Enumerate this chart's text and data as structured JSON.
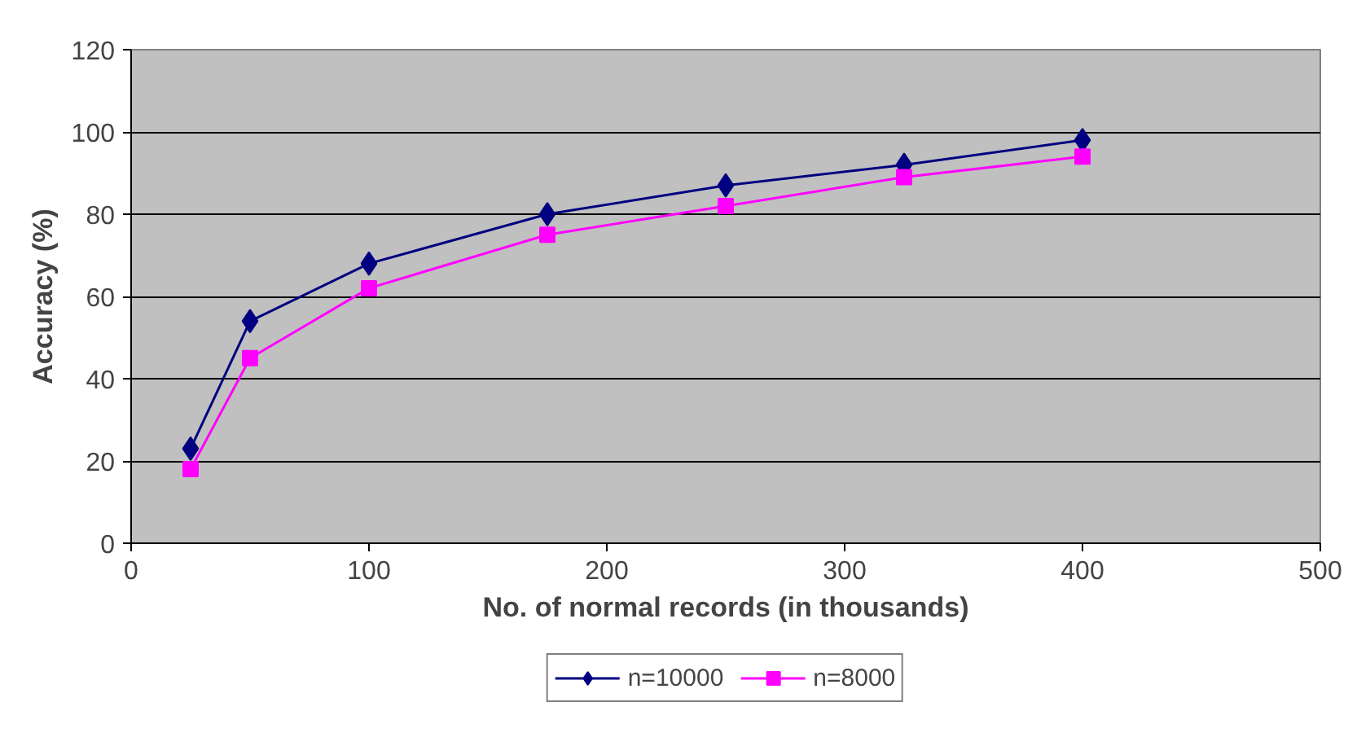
{
  "chart_data": {
    "type": "line",
    "xlabel": "No. of normal records (in thousands)",
    "ylabel": "Accuracy (%)",
    "x": [
      25,
      50,
      100,
      175,
      250,
      325,
      400
    ],
    "series": [
      {
        "name": "n=10000",
        "color": "#000080",
        "marker": "diamond",
        "values": [
          23,
          54,
          68,
          80,
          87,
          92,
          98
        ]
      },
      {
        "name": "n=8000",
        "color": "#ff00ff",
        "marker": "square",
        "values": [
          18,
          45,
          62,
          75,
          82,
          89,
          94
        ]
      }
    ],
    "xlim": [
      0,
      500
    ],
    "xticks": [
      0,
      100,
      200,
      300,
      400,
      500
    ],
    "ylim": [
      0,
      120
    ],
    "yticks": [
      0,
      20,
      40,
      60,
      80,
      100,
      120
    ],
    "grid": "y",
    "legend": "bottom",
    "line_style": "solid"
  }
}
